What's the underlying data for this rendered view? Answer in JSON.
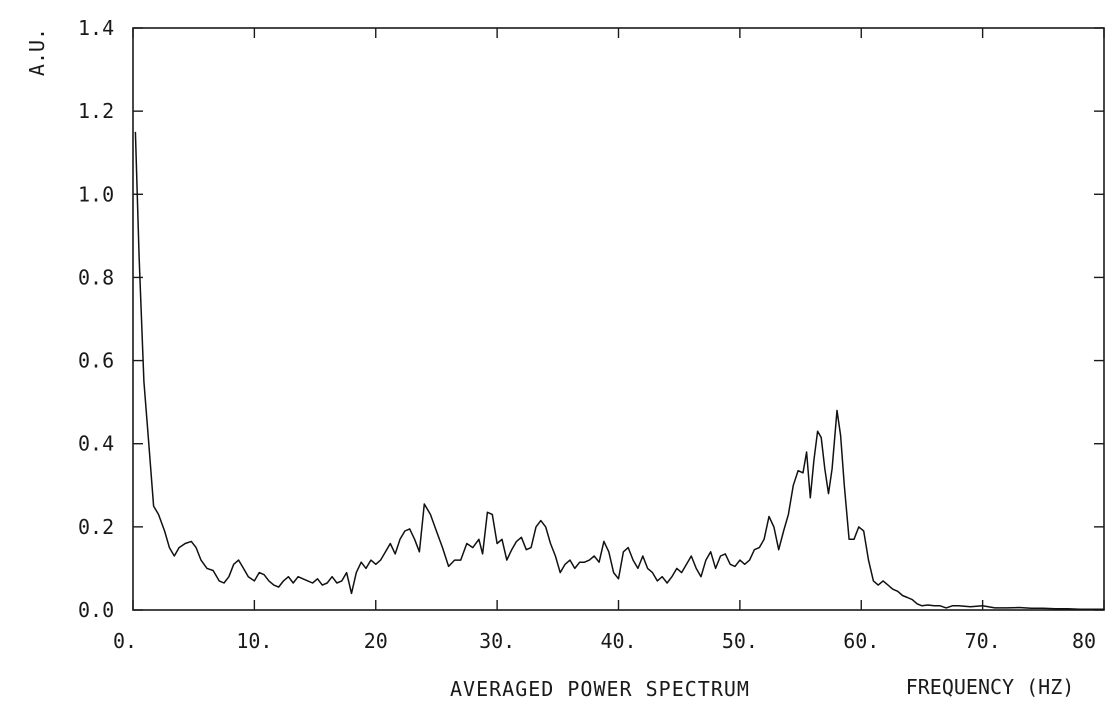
{
  "chart_data": {
    "type": "line",
    "title": "",
    "caption": "AVERAGED POWER SPECTRUM",
    "xlabel": "FREQUENCY (HZ)",
    "ylabel": "A.U.",
    "xlim": [
      0,
      80
    ],
    "ylim": [
      0,
      1.4
    ],
    "x_ticks": [
      0,
      10,
      20,
      30,
      40,
      50,
      60,
      70,
      80
    ],
    "x_tick_labels": [
      "0.",
      "10.",
      "20",
      "30.",
      "40.",
      "50.",
      "60.",
      "70.",
      "80"
    ],
    "y_ticks": [
      0,
      0.2,
      0.4,
      0.6,
      0.8,
      1.0,
      1.2,
      1.4
    ],
    "y_tick_labels": [
      "0.0",
      "0.2",
      "0.4",
      "0.6",
      "0.8",
      "1.0",
      "1.2",
      "1.4"
    ],
    "grid": false,
    "series": [
      {
        "values": [
          [
            0.2,
            1.15
          ],
          [
            0.5,
            0.85
          ],
          [
            0.9,
            0.55
          ],
          [
            1.3,
            0.4
          ],
          [
            1.7,
            0.25
          ],
          [
            2.1,
            0.23
          ],
          [
            2.6,
            0.19
          ],
          [
            3.0,
            0.15
          ],
          [
            3.4,
            0.13
          ],
          [
            3.8,
            0.15
          ],
          [
            4.3,
            0.16
          ],
          [
            4.8,
            0.165
          ],
          [
            5.2,
            0.15
          ],
          [
            5.6,
            0.12
          ],
          [
            6.1,
            0.1
          ],
          [
            6.6,
            0.095
          ],
          [
            7.1,
            0.07
          ],
          [
            7.5,
            0.065
          ],
          [
            7.9,
            0.08
          ],
          [
            8.3,
            0.11
          ],
          [
            8.7,
            0.12
          ],
          [
            9.1,
            0.1
          ],
          [
            9.5,
            0.08
          ],
          [
            10.0,
            0.07
          ],
          [
            10.4,
            0.09
          ],
          [
            10.8,
            0.085
          ],
          [
            11.2,
            0.07
          ],
          [
            11.6,
            0.06
          ],
          [
            12.0,
            0.055
          ],
          [
            12.4,
            0.07
          ],
          [
            12.8,
            0.08
          ],
          [
            13.2,
            0.065
          ],
          [
            13.6,
            0.08
          ],
          [
            14.0,
            0.075
          ],
          [
            14.4,
            0.07
          ],
          [
            14.8,
            0.065
          ],
          [
            15.2,
            0.075
          ],
          [
            15.6,
            0.06
          ],
          [
            16.0,
            0.065
          ],
          [
            16.4,
            0.08
          ],
          [
            16.8,
            0.065
          ],
          [
            17.2,
            0.07
          ],
          [
            17.6,
            0.09
          ],
          [
            18.0,
            0.04
          ],
          [
            18.4,
            0.09
          ],
          [
            18.8,
            0.115
          ],
          [
            19.2,
            0.1
          ],
          [
            19.6,
            0.12
          ],
          [
            20.0,
            0.11
          ],
          [
            20.4,
            0.12
          ],
          [
            20.8,
            0.14
          ],
          [
            21.2,
            0.16
          ],
          [
            21.6,
            0.135
          ],
          [
            22.0,
            0.17
          ],
          [
            22.4,
            0.19
          ],
          [
            22.8,
            0.195
          ],
          [
            23.2,
            0.17
          ],
          [
            23.6,
            0.14
          ],
          [
            24.0,
            0.255
          ],
          [
            24.5,
            0.23
          ],
          [
            25.0,
            0.19
          ],
          [
            25.5,
            0.15
          ],
          [
            26.0,
            0.105
          ],
          [
            26.5,
            0.12
          ],
          [
            27.0,
            0.12
          ],
          [
            27.5,
            0.16
          ],
          [
            28.0,
            0.15
          ],
          [
            28.5,
            0.17
          ],
          [
            28.8,
            0.135
          ],
          [
            29.2,
            0.235
          ],
          [
            29.6,
            0.23
          ],
          [
            30.0,
            0.16
          ],
          [
            30.4,
            0.17
          ],
          [
            30.8,
            0.12
          ],
          [
            31.2,
            0.145
          ],
          [
            31.6,
            0.165
          ],
          [
            32.0,
            0.175
          ],
          [
            32.4,
            0.145
          ],
          [
            32.8,
            0.15
          ],
          [
            33.2,
            0.2
          ],
          [
            33.6,
            0.215
          ],
          [
            34.0,
            0.2
          ],
          [
            34.4,
            0.16
          ],
          [
            34.8,
            0.13
          ],
          [
            35.2,
            0.09
          ],
          [
            35.6,
            0.11
          ],
          [
            36.0,
            0.12
          ],
          [
            36.4,
            0.1
          ],
          [
            36.8,
            0.115
          ],
          [
            37.2,
            0.115
          ],
          [
            37.6,
            0.12
          ],
          [
            38.0,
            0.13
          ],
          [
            38.4,
            0.115
          ],
          [
            38.8,
            0.165
          ],
          [
            39.2,
            0.14
          ],
          [
            39.6,
            0.09
          ],
          [
            40.0,
            0.075
          ],
          [
            40.4,
            0.14
          ],
          [
            40.8,
            0.15
          ],
          [
            41.2,
            0.12
          ],
          [
            41.6,
            0.1
          ],
          [
            42.0,
            0.13
          ],
          [
            42.4,
            0.1
          ],
          [
            42.8,
            0.09
          ],
          [
            43.2,
            0.07
          ],
          [
            43.6,
            0.08
          ],
          [
            44.0,
            0.065
          ],
          [
            44.4,
            0.08
          ],
          [
            44.8,
            0.1
          ],
          [
            45.2,
            0.09
          ],
          [
            45.6,
            0.11
          ],
          [
            46.0,
            0.13
          ],
          [
            46.4,
            0.1
          ],
          [
            46.8,
            0.08
          ],
          [
            47.2,
            0.12
          ],
          [
            47.6,
            0.14
          ],
          [
            48.0,
            0.1
          ],
          [
            48.4,
            0.13
          ],
          [
            48.8,
            0.135
          ],
          [
            49.2,
            0.11
          ],
          [
            49.6,
            0.105
          ],
          [
            50.0,
            0.12
          ],
          [
            50.4,
            0.11
          ],
          [
            50.8,
            0.12
          ],
          [
            51.2,
            0.145
          ],
          [
            51.6,
            0.15
          ],
          [
            52.0,
            0.17
          ],
          [
            52.4,
            0.225
          ],
          [
            52.8,
            0.2
          ],
          [
            53.2,
            0.145
          ],
          [
            53.6,
            0.19
          ],
          [
            54.0,
            0.23
          ],
          [
            54.4,
            0.3
          ],
          [
            54.8,
            0.335
          ],
          [
            55.2,
            0.33
          ],
          [
            55.5,
            0.38
          ],
          [
            55.8,
            0.27
          ],
          [
            56.1,
            0.36
          ],
          [
            56.4,
            0.43
          ],
          [
            56.7,
            0.415
          ],
          [
            57.0,
            0.34
          ],
          [
            57.3,
            0.28
          ],
          [
            57.6,
            0.34
          ],
          [
            58.0,
            0.48
          ],
          [
            58.3,
            0.42
          ],
          [
            58.6,
            0.3
          ],
          [
            59.0,
            0.17
          ],
          [
            59.4,
            0.17
          ],
          [
            59.8,
            0.2
          ],
          [
            60.2,
            0.19
          ],
          [
            60.6,
            0.12
          ],
          [
            61.0,
            0.07
          ],
          [
            61.4,
            0.06
          ],
          [
            61.8,
            0.07
          ],
          [
            62.2,
            0.06
          ],
          [
            62.6,
            0.05
          ],
          [
            63.0,
            0.045
          ],
          [
            63.4,
            0.035
          ],
          [
            63.8,
            0.03
          ],
          [
            64.2,
            0.025
          ],
          [
            64.6,
            0.015
          ],
          [
            65.0,
            0.01
          ],
          [
            65.5,
            0.012
          ],
          [
            66.0,
            0.01
          ],
          [
            66.5,
            0.01
          ],
          [
            67.0,
            0.005
          ],
          [
            67.5,
            0.01
          ],
          [
            68.0,
            0.01
          ],
          [
            69.0,
            0.008
          ],
          [
            70.0,
            0.01
          ],
          [
            71.0,
            0.005
          ],
          [
            72.0,
            0.005
          ],
          [
            73.0,
            0.006
          ],
          [
            74.0,
            0.004
          ],
          [
            75.0,
            0.004
          ],
          [
            76.0,
            0.003
          ],
          [
            77.0,
            0.003
          ],
          [
            78.0,
            0.002
          ],
          [
            79.0,
            0.002
          ],
          [
            80.0,
            0.002
          ]
        ]
      }
    ]
  }
}
